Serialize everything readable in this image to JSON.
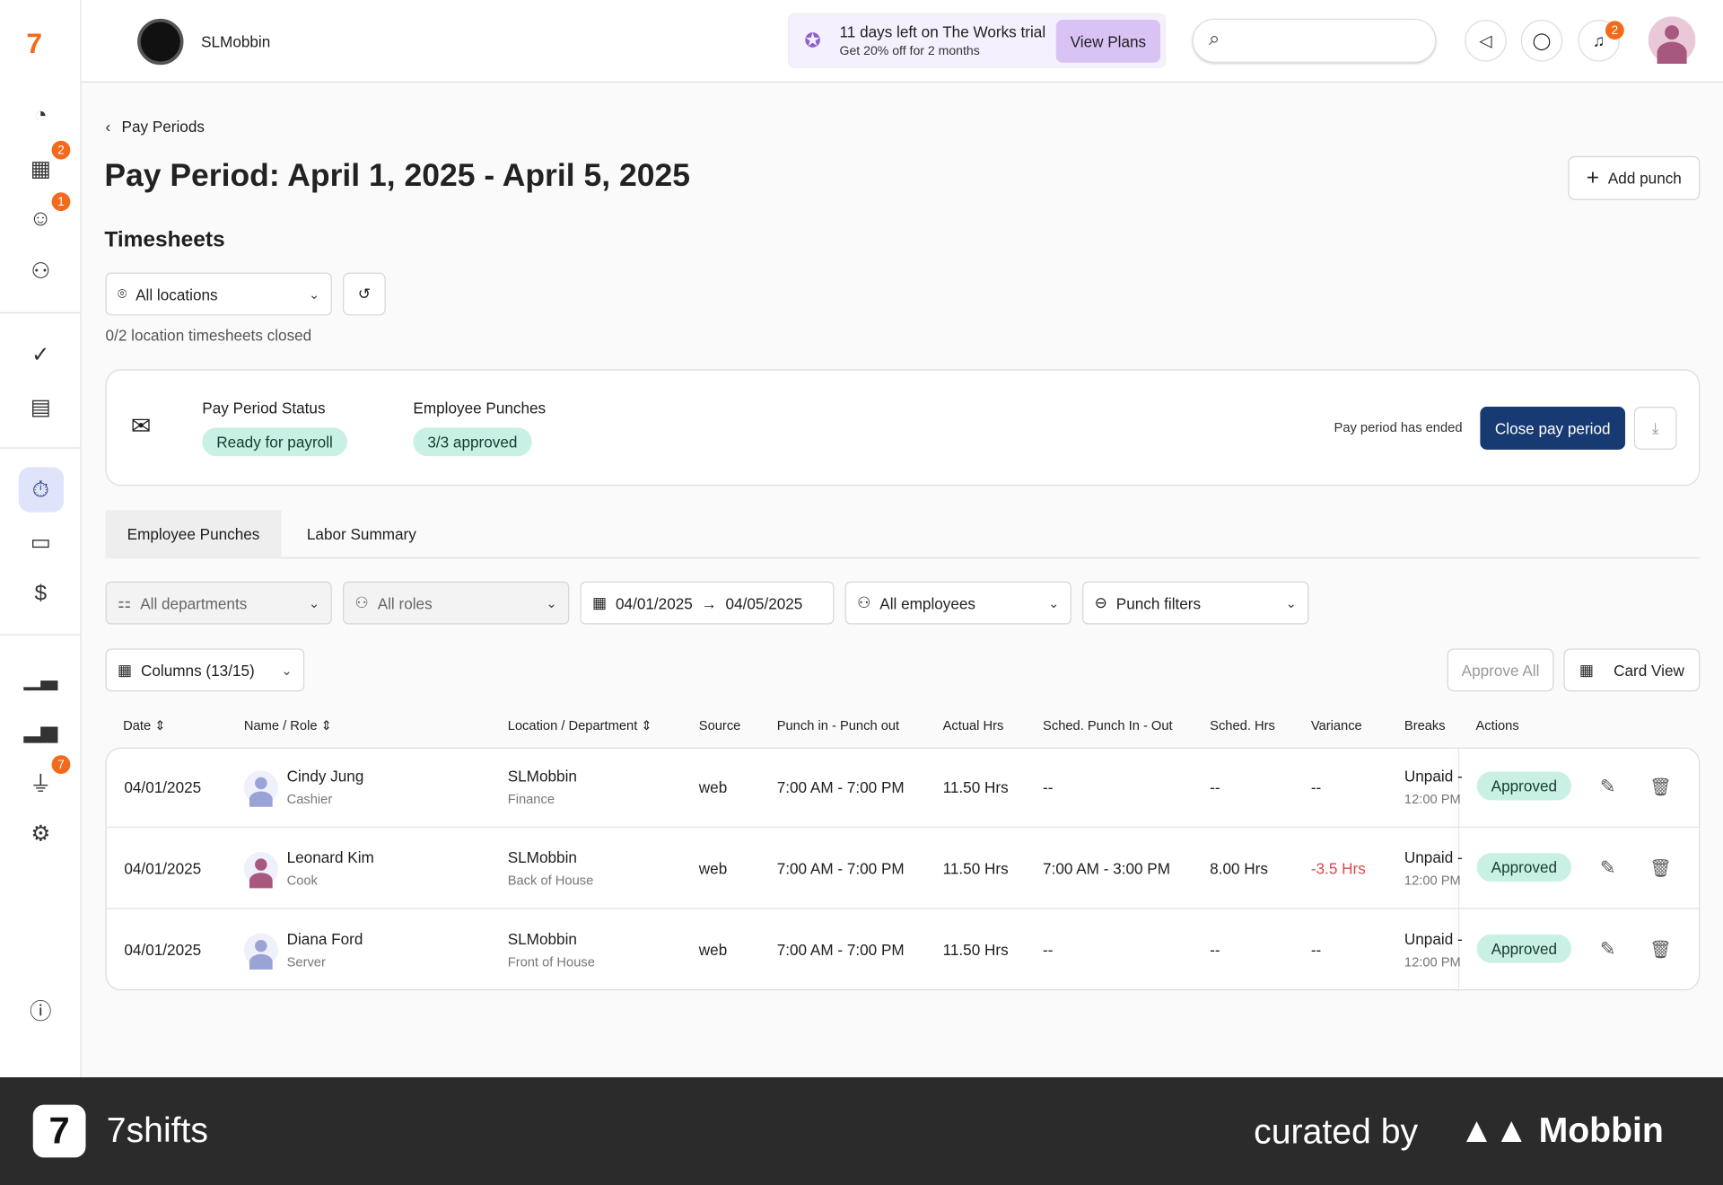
{
  "brand": {
    "name": "SLMobbin"
  },
  "trial": {
    "title": "11 days left on The Works trial",
    "subtitle": "Get 20% off for 2 months",
    "button": "View Plans"
  },
  "badges": {
    "schedule": "2",
    "engage": "1",
    "integrations": "7",
    "notifications": "2"
  },
  "breadcrumb": "Pay Periods",
  "page_title": "Pay Period: April 1, 2025 - April 5, 2025",
  "add_punch": "Add punch",
  "section_title": "Timesheets",
  "location_select": "All locations",
  "closed_note": "0/2 location timesheets closed",
  "status_card": {
    "status_label": "Pay Period Status",
    "status_value": "Ready for payroll",
    "punches_label": "Employee Punches",
    "punches_value": "3/3 approved",
    "ended_note": "Pay period has ended",
    "close_button": "Close pay period"
  },
  "tabs": [
    {
      "label": "Employee Punches",
      "active": true
    },
    {
      "label": "Labor Summary",
      "active": false
    }
  ],
  "filters": {
    "departments": "All departments",
    "roles": "All roles",
    "date_from": "04/01/2025",
    "date_to": "04/05/2025",
    "employees": "All employees",
    "punch_filters": "Punch filters"
  },
  "columns_button": "Columns (13/15)",
  "approve_all": "Approve All",
  "card_view": "Card View",
  "table": {
    "headers": [
      "Date",
      "Name / Role",
      "Location / Department",
      "Source",
      "Punch in - Punch out",
      "Actual Hrs",
      "Sched. Punch In - Out",
      "Sched. Hrs",
      "Variance",
      "Breaks",
      "Actions"
    ],
    "rows": [
      {
        "date": "04/01/2025",
        "name": "Cindy Jung",
        "role": "Cashier",
        "location": "SLMobbin",
        "department": "Finance",
        "source": "web",
        "punch": "7:00 AM - 7:00 PM",
        "actual": "11.50 Hrs",
        "sched_punch": "--",
        "sched_hrs": "--",
        "variance": "--",
        "break_type": "Unpaid -",
        "break_time": "12:00 PM",
        "status": "Approved",
        "avatar_color": "#9aa3d6"
      },
      {
        "date": "04/01/2025",
        "name": "Leonard Kim",
        "role": "Cook",
        "location": "SLMobbin",
        "department": "Back of House",
        "source": "web",
        "punch": "7:00 AM - 7:00 PM",
        "actual": "11.50 Hrs",
        "sched_punch": "7:00 AM - 3:00 PM",
        "sched_hrs": "8.00 Hrs",
        "variance": "-3.5 Hrs",
        "break_type": "Unpaid -",
        "break_time": "12:00 PM",
        "status": "Approved",
        "avatar_color": "#a8587f"
      },
      {
        "date": "04/01/2025",
        "name": "Diana Ford",
        "role": "Server",
        "location": "SLMobbin",
        "department": "Front of House",
        "source": "web",
        "punch": "7:00 AM - 7:00 PM",
        "actual": "11.50 Hrs",
        "sched_punch": "--",
        "sched_hrs": "--",
        "variance": "--",
        "break_type": "Unpaid -",
        "break_time": "12:00 PM",
        "status": "Approved",
        "avatar_color": "#9aa3d6"
      }
    ]
  },
  "footer": {
    "app": "7shifts",
    "curated": "curated by",
    "mobbin": "Mobbin"
  },
  "colors": {
    "accent": "#f26b1d",
    "primary": "#173a73",
    "approved": "#c9f0e4",
    "negative": "#e0444b"
  }
}
